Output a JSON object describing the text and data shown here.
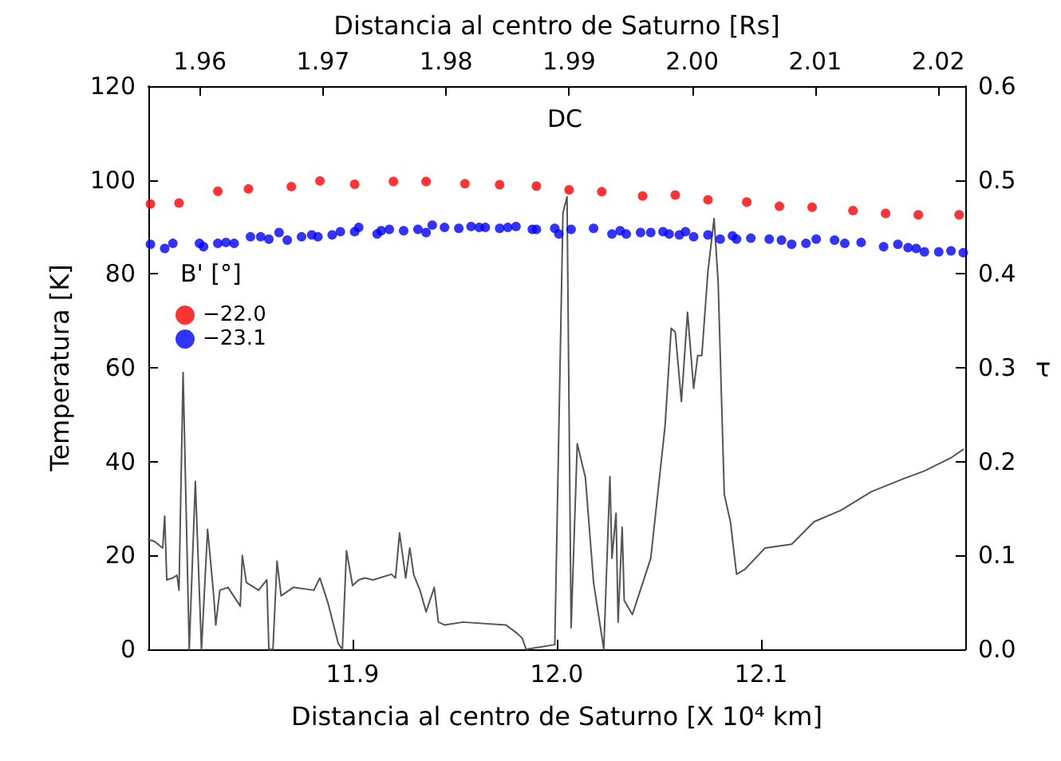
{
  "chart_data": {
    "type": "scatter",
    "title": "DC",
    "xlabel": "Distancia al centro de Saturno [X 10⁴ km]",
    "x2label": "Distancia al centro de Saturno [Rs]",
    "ylabel": "Temperatura [K]",
    "y2label": "τ",
    "legend_title": "B' [°]",
    "xlim": [
      11.8,
      12.2
    ],
    "xticks": [
      11.9,
      {
        "value": 12.0,
        "label": "12.0"
      },
      12.1
    ],
    "x2lim": [
      1.9558,
      2.0222
    ],
    "x2ticks": [
      1.96,
      1.97,
      1.98,
      1.99,
      {
        "value": 2.0,
        "label": "2.00"
      },
      2.01,
      2.02
    ],
    "ylim": [
      0,
      120
    ],
    "yticks": [
      0,
      20,
      40,
      60,
      80,
      100,
      120
    ],
    "y2lim": [
      0,
      0.6
    ],
    "y2ticks": [
      {
        "value": 0,
        "label": "0.0"
      },
      0.1,
      0.2,
      0.3,
      0.4,
      0.5,
      0.6
    ],
    "grid": false,
    "legend": "top left",
    "marker": "circle",
    "series": [
      {
        "name": "−22.0",
        "color": "#ff0000",
        "x": [
          11.801,
          11.815,
          11.834,
          11.849,
          11.87,
          11.884,
          11.901,
          11.92,
          11.936,
          11.955,
          11.972,
          11.99,
          12.006,
          12.022,
          12.042,
          12.058,
          12.074,
          12.093,
          12.109,
          12.125,
          12.145,
          12.161,
          12.177,
          12.197
        ],
        "values": [
          94.9,
          95.1,
          97.6,
          98.1,
          98.6,
          99.8,
          99.1,
          99.7,
          99.7,
          99.2,
          99.0,
          98.7,
          97.9,
          97.5,
          96.6,
          96.8,
          95.8,
          95.3,
          94.4,
          94.2,
          93.5,
          92.9,
          92.6,
          92.6
        ]
      },
      {
        "name": "−23.1",
        "color": "#0000ff",
        "x": [
          11.801,
          11.808,
          11.812,
          11.825,
          11.827,
          11.834,
          11.838,
          11.842,
          11.85,
          11.855,
          11.859,
          11.864,
          11.868,
          11.875,
          11.88,
          11.883,
          11.89,
          11.894,
          11.901,
          11.903,
          11.912,
          11.914,
          11.918,
          11.925,
          11.932,
          11.936,
          11.939,
          11.945,
          11.952,
          11.958,
          11.962,
          11.965,
          11.972,
          11.976,
          11.98,
          11.988,
          11.99,
          11.999,
          12.001,
          12.007,
          12.018,
          12.027,
          12.031,
          12.034,
          12.041,
          12.046,
          12.052,
          12.055,
          12.06,
          12.063,
          12.067,
          12.074,
          12.08,
          12.086,
          12.088,
          12.095,
          12.104,
          12.11,
          12.115,
          12.122,
          12.127,
          12.136,
          12.141,
          12.149,
          12.16,
          12.167,
          12.172,
          12.176,
          12.18,
          12.187,
          12.193,
          12.199
        ],
        "values": [
          86.3,
          85.4,
          86.5,
          86.5,
          85.8,
          86.5,
          86.7,
          86.5,
          87.9,
          87.9,
          87.4,
          88.8,
          87.2,
          87.9,
          88.3,
          87.9,
          88.3,
          89.0,
          89.0,
          89.9,
          88.5,
          89.2,
          89.5,
          89.2,
          89.5,
          88.8,
          90.4,
          89.9,
          89.7,
          90.1,
          89.9,
          89.9,
          89.7,
          89.9,
          90.1,
          89.5,
          89.5,
          89.7,
          88.5,
          89.5,
          89.7,
          88.5,
          89.2,
          88.5,
          88.8,
          88.8,
          89.0,
          88.5,
          88.3,
          89.0,
          87.9,
          88.3,
          87.4,
          88.1,
          87.4,
          87.6,
          87.4,
          87.2,
          86.3,
          86.5,
          87.4,
          87.2,
          86.5,
          86.7,
          85.8,
          86.3,
          85.6,
          85.4,
          84.7,
          84.7,
          84.9,
          84.5
        ]
      },
      {
        "type": "line",
        "axis": "y2",
        "color": "#555555",
        "marker": "none",
        "x": [
          11.8,
          11.803,
          11.807,
          11.808,
          11.809,
          11.812,
          11.814,
          11.815,
          11.817,
          11.82,
          11.823,
          11.826,
          11.829,
          11.832,
          11.833,
          11.835,
          11.839,
          11.845,
          11.846,
          11.848,
          11.854,
          11.858,
          11.859,
          11.861,
          11.863,
          11.865,
          11.871,
          11.881,
          11.884,
          11.888,
          11.893,
          11.895,
          11.897,
          11.9,
          11.903,
          11.906,
          11.91,
          11.919,
          11.921,
          11.923,
          11.926,
          11.928,
          11.93,
          11.933,
          11.936,
          11.94,
          11.942,
          11.945,
          11.954,
          11.975,
          11.98,
          11.983,
          11.985,
          11.999,
          12.003,
          12.005,
          12.007,
          12.01,
          12.014,
          12.018,
          12.023,
          12.026,
          12.027,
          12.029,
          12.03,
          12.032,
          12.033,
          12.037,
          12.046,
          12.053,
          12.056,
          12.058,
          12.061,
          12.064,
          12.067,
          12.069,
          12.071,
          12.074,
          12.077,
          12.079,
          12.082,
          12.085,
          12.088,
          12.092,
          12.102,
          12.115,
          12.126,
          12.139,
          12.154,
          12.17,
          12.18,
          12.193,
          12.199
        ],
        "values": [
          0.117,
          0.115,
          0.108,
          0.142,
          0.074,
          0.076,
          0.079,
          0.063,
          0.295,
          0.0,
          0.179,
          0.0,
          0.128,
          0.057,
          0.026,
          0.063,
          0.066,
          0.046,
          0.1,
          0.071,
          0.063,
          0.074,
          0.0,
          0.0,
          0.094,
          0.057,
          0.066,
          0.063,
          0.076,
          0.049,
          0.006,
          0.0,
          0.105,
          0.068,
          0.074,
          0.076,
          0.074,
          0.08,
          0.076,
          0.124,
          0.076,
          0.108,
          0.079,
          0.063,
          0.04,
          0.066,
          0.029,
          0.026,
          0.029,
          0.026,
          0.018,
          0.012,
          0.0,
          0.005,
          0.465,
          0.482,
          0.023,
          0.219,
          0.183,
          0.071,
          0.0,
          0.184,
          0.097,
          0.145,
          0.029,
          0.13,
          0.052,
          0.037,
          0.097,
          0.238,
          0.342,
          0.338,
          0.264,
          0.359,
          0.278,
          0.313,
          0.313,
          0.403,
          0.459,
          0.391,
          0.165,
          0.136,
          0.08,
          0.085,
          0.108,
          0.112,
          0.136,
          0.148,
          0.168,
          0.182,
          0.19,
          0.204,
          0.213
        ]
      }
    ]
  }
}
